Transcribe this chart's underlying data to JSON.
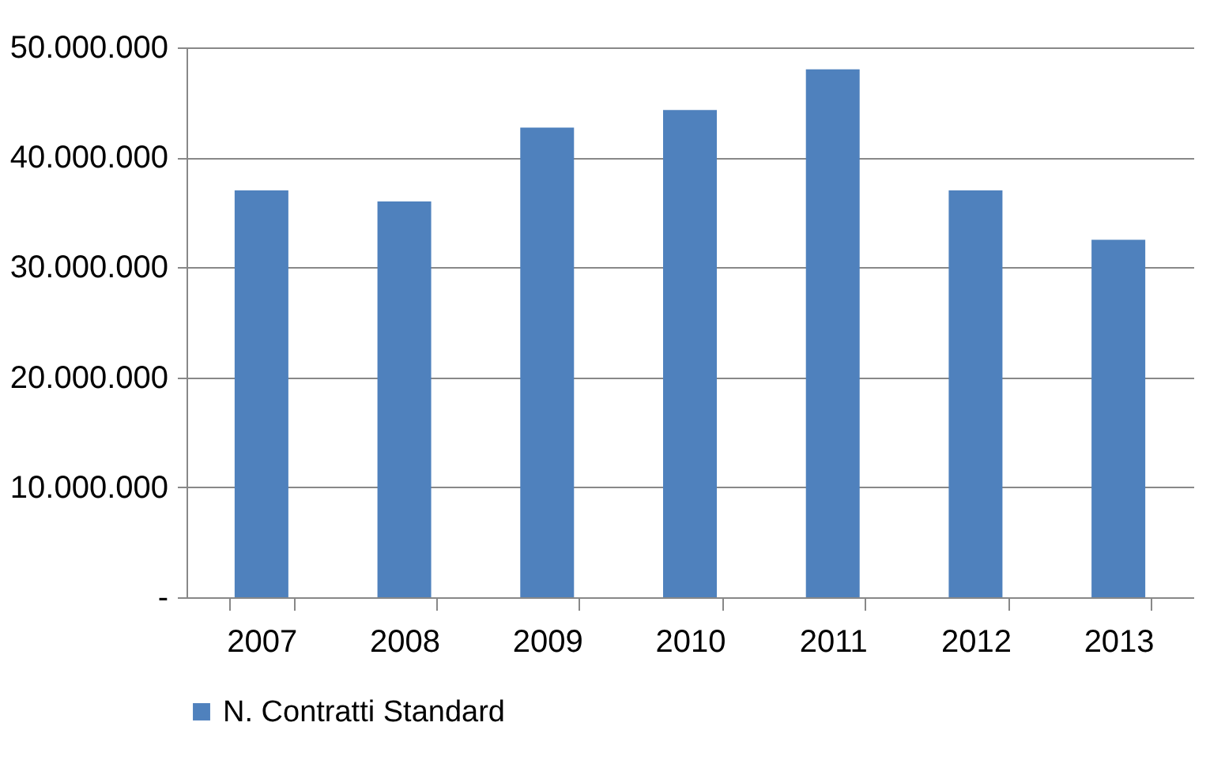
{
  "chart_data": {
    "type": "bar",
    "categories": [
      "2007",
      "2008",
      "2009",
      "2010",
      "2011",
      "2012",
      "2013"
    ],
    "series": [
      {
        "name": "N. Contratti Standard",
        "color": "#4f81bd",
        "values": [
          37000000,
          36000000,
          42700000,
          44300000,
          48000000,
          37000000,
          32500000
        ]
      }
    ],
    "ylim": [
      0,
      50000000
    ],
    "yticks": [
      {
        "value": 0,
        "label": "-"
      },
      {
        "value": 10000000,
        "label": "10.000.000"
      },
      {
        "value": 20000000,
        "label": "20.000.000"
      },
      {
        "value": 30000000,
        "label": "30.000.000"
      },
      {
        "value": 40000000,
        "label": "40.000.000"
      },
      {
        "value": 50000000,
        "label": "50.000.000"
      }
    ],
    "grid": "y",
    "legend": "bottom"
  }
}
